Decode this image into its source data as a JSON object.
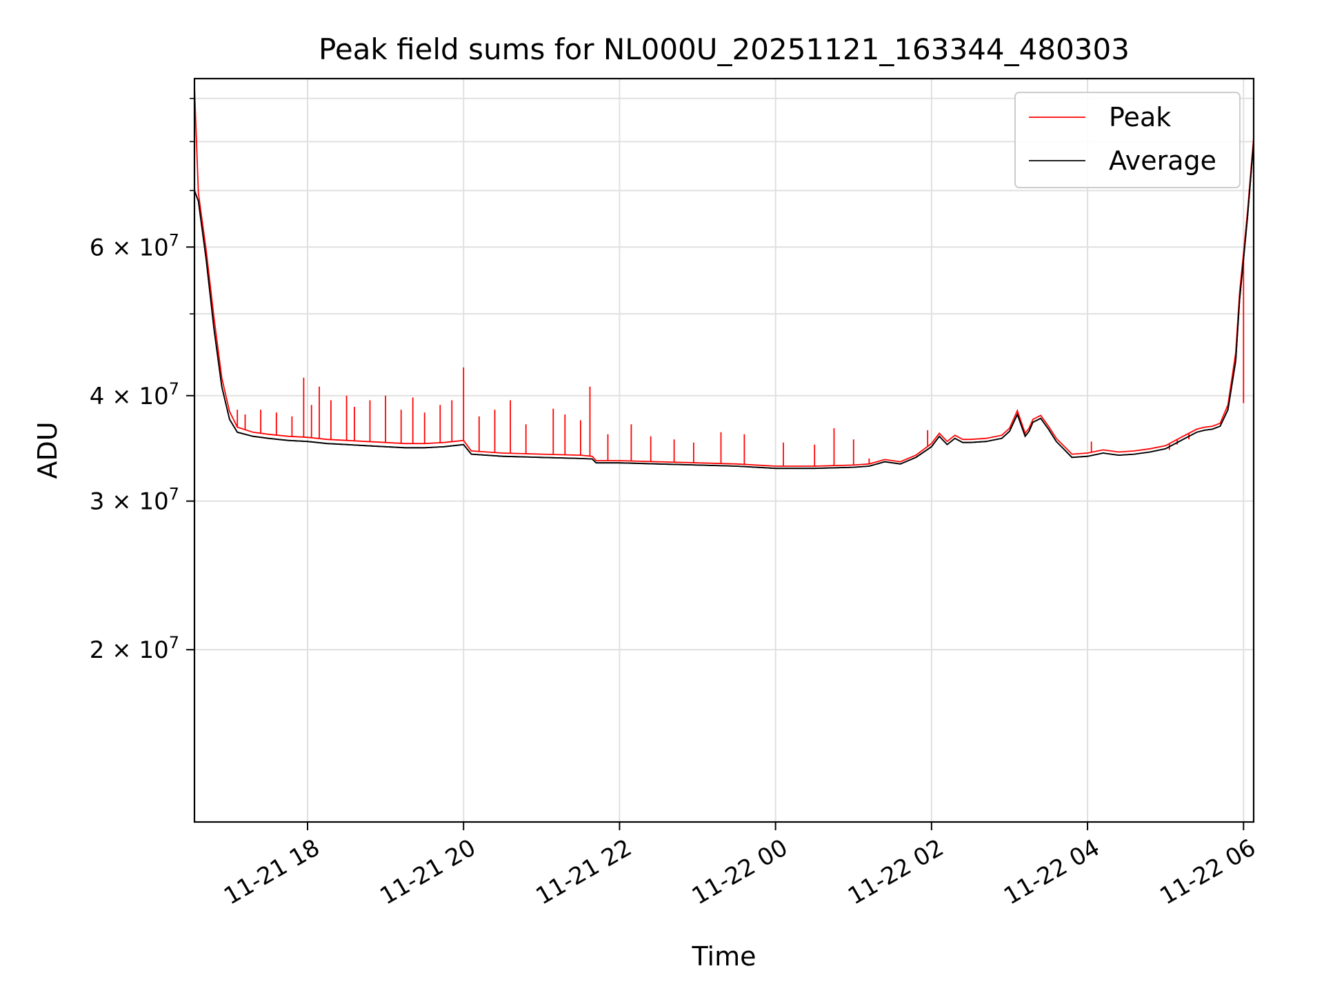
{
  "chart_data": {
    "type": "line",
    "title": "Peak field sums for NL000U_20251121_163344_480303",
    "xlabel": "Time",
    "ylabel": "ADU",
    "yscale": "log",
    "ylim": [
      12500000,
      95000000
    ],
    "xlim_hours": [
      16.55,
      30.13
    ],
    "x_unit": "hours since 2025-11-21 00:00",
    "grid": true,
    "legend": {
      "placement": "top-right",
      "entries": [
        "Peak",
        "Average"
      ]
    },
    "colors": {
      "Peak": "#ff0000",
      "Average": "#000000",
      "grid": "#e0e0e0"
    },
    "xticks": [
      {
        "value": 18,
        "label": "11-21 18"
      },
      {
        "value": 20,
        "label": "11-21 20"
      },
      {
        "value": 22,
        "label": "11-21 22"
      },
      {
        "value": 24,
        "label": "11-22 00"
      },
      {
        "value": 26,
        "label": "11-22 02"
      },
      {
        "value": 28,
        "label": "11-22 04"
      },
      {
        "value": 30,
        "label": "11-22 06"
      }
    ],
    "yticks_major": [
      {
        "value": 20000000,
        "mantissa": "2",
        "exp": "7"
      },
      {
        "value": 30000000,
        "mantissa": "3",
        "exp": "7"
      },
      {
        "value": 40000000,
        "mantissa": "4",
        "exp": "7"
      },
      {
        "value": 60000000,
        "mantissa": "6",
        "exp": "7"
      }
    ],
    "yticks_minor": [
      50000000,
      70000000,
      80000000,
      90000000
    ],
    "series": [
      {
        "name": "Average",
        "x": [
          16.55,
          16.6,
          16.7,
          16.8,
          16.9,
          17.0,
          17.1,
          17.3,
          17.5,
          17.75,
          18.0,
          18.25,
          18.5,
          18.75,
          19.0,
          19.25,
          19.5,
          19.75,
          20.0,
          20.1,
          20.5,
          21.0,
          21.5,
          21.65,
          21.7,
          22.0,
          22.5,
          23.0,
          23.5,
          24.0,
          24.5,
          25.0,
          25.2,
          25.4,
          25.6,
          25.8,
          26.0,
          26.05,
          26.1,
          26.2,
          26.3,
          26.4,
          26.5,
          26.7,
          26.9,
          27.0,
          27.1,
          27.2,
          27.25,
          27.3,
          27.4,
          27.5,
          27.6,
          27.8,
          28.0,
          28.2,
          28.4,
          28.6,
          28.8,
          29.0,
          29.2,
          29.4,
          29.5,
          29.6,
          29.7,
          29.8,
          29.9,
          29.95,
          30.0,
          30.05,
          30.1,
          30.13
        ],
        "y": [
          70000000,
          68000000,
          58000000,
          48000000,
          41000000,
          37500000,
          36200000,
          35800000,
          35600000,
          35400000,
          35300000,
          35100000,
          35000000,
          34900000,
          34800000,
          34700000,
          34700000,
          34800000,
          35000000,
          34100000,
          33900000,
          33800000,
          33700000,
          33650000,
          33300000,
          33300000,
          33200000,
          33100000,
          33000000,
          32800000,
          32800000,
          32900000,
          33000000,
          33400000,
          33200000,
          33800000,
          34800000,
          35300000,
          35800000,
          35000000,
          35600000,
          35200000,
          35200000,
          35300000,
          35600000,
          36300000,
          38000000,
          35800000,
          36300000,
          37200000,
          37600000,
          36500000,
          35300000,
          33800000,
          33900000,
          34200000,
          34000000,
          34100000,
          34300000,
          34600000,
          35400000,
          36200000,
          36400000,
          36500000,
          36800000,
          38500000,
          44000000,
          52000000,
          58000000,
          65000000,
          74000000,
          80000000
        ]
      },
      {
        "name": "Peak",
        "x": [
          16.55,
          16.6,
          16.7,
          16.8,
          16.9,
          17.0,
          17.1,
          17.3,
          17.5,
          17.75,
          18.0,
          18.25,
          18.5,
          18.75,
          19.0,
          19.25,
          19.5,
          19.75,
          20.0,
          20.1,
          20.5,
          21.0,
          21.5,
          21.65,
          21.7,
          22.0,
          22.5,
          23.0,
          23.5,
          24.0,
          24.5,
          25.0,
          25.2,
          25.4,
          25.6,
          25.8,
          26.0,
          26.05,
          26.1,
          26.2,
          26.3,
          26.4,
          26.5,
          26.7,
          26.9,
          27.0,
          27.1,
          27.2,
          27.25,
          27.3,
          27.4,
          27.5,
          27.6,
          27.8,
          28.0,
          28.2,
          28.4,
          28.6,
          28.8,
          29.0,
          29.2,
          29.4,
          29.5,
          29.6,
          29.7,
          29.8,
          29.9,
          29.95,
          30.0,
          30.05,
          30.1,
          30.13
        ],
        "y": [
          93000000,
          69500000,
          59500000,
          49500000,
          42000000,
          38300000,
          36700000,
          36200000,
          36000000,
          35800000,
          35700000,
          35500000,
          35400000,
          35300000,
          35200000,
          35100000,
          35100000,
          35200000,
          35400000,
          34400000,
          34200000,
          34100000,
          34000000,
          33900000,
          33500000,
          33500000,
          33400000,
          33300000,
          33200000,
          33000000,
          33000000,
          33100000,
          33200000,
          33600000,
          33400000,
          34000000,
          35100000,
          35600000,
          36100000,
          35300000,
          35900000,
          35500000,
          35500000,
          35600000,
          35900000,
          36600000,
          38400000,
          36100000,
          36600000,
          37500000,
          37900000,
          36800000,
          35600000,
          34100000,
          34200000,
          34500000,
          34300000,
          34400000,
          34600000,
          34900000,
          35700000,
          36500000,
          36700000,
          36800000,
          37100000,
          39000000,
          45000000,
          53000000,
          59000000,
          66000000,
          75000000,
          81000000
        ]
      }
    ],
    "peak_spikes": [
      [
        17.1,
        38500000
      ],
      [
        17.2,
        38000000
      ],
      [
        17.4,
        38500000
      ],
      [
        17.6,
        38200000
      ],
      [
        17.8,
        37800000
      ],
      [
        17.95,
        42000000
      ],
      [
        18.05,
        39000000
      ],
      [
        18.15,
        41000000
      ],
      [
        18.3,
        39500000
      ],
      [
        18.5,
        40000000
      ],
      [
        18.6,
        38800000
      ],
      [
        18.8,
        39500000
      ],
      [
        19.0,
        40000000
      ],
      [
        19.2,
        38500000
      ],
      [
        19.35,
        39800000
      ],
      [
        19.5,
        38200000
      ],
      [
        19.7,
        39000000
      ],
      [
        19.85,
        39500000
      ],
      [
        20.0,
        43200000
      ],
      [
        20.2,
        37800000
      ],
      [
        20.4,
        38500000
      ],
      [
        20.6,
        39500000
      ],
      [
        20.8,
        37000000
      ],
      [
        21.15,
        38600000
      ],
      [
        21.3,
        38000000
      ],
      [
        21.5,
        37400000
      ],
      [
        21.62,
        41000000
      ],
      [
        21.85,
        36000000
      ],
      [
        22.15,
        37000000
      ],
      [
        22.4,
        35800000
      ],
      [
        22.7,
        35500000
      ],
      [
        22.95,
        35200000
      ],
      [
        23.3,
        36200000
      ],
      [
        23.6,
        36000000
      ],
      [
        24.1,
        35200000
      ],
      [
        24.5,
        35000000
      ],
      [
        24.75,
        36600000
      ],
      [
        25.0,
        35500000
      ],
      [
        25.2,
        33700000
      ],
      [
        25.95,
        36400000
      ],
      [
        27.2,
        35800000
      ],
      [
        28.05,
        35300000
      ],
      [
        29.05,
        34500000
      ],
      [
        29.15,
        35000000
      ],
      [
        29.3,
        35500000
      ],
      [
        29.8,
        38500000
      ],
      [
        30.0,
        39200000
      ]
    ]
  }
}
